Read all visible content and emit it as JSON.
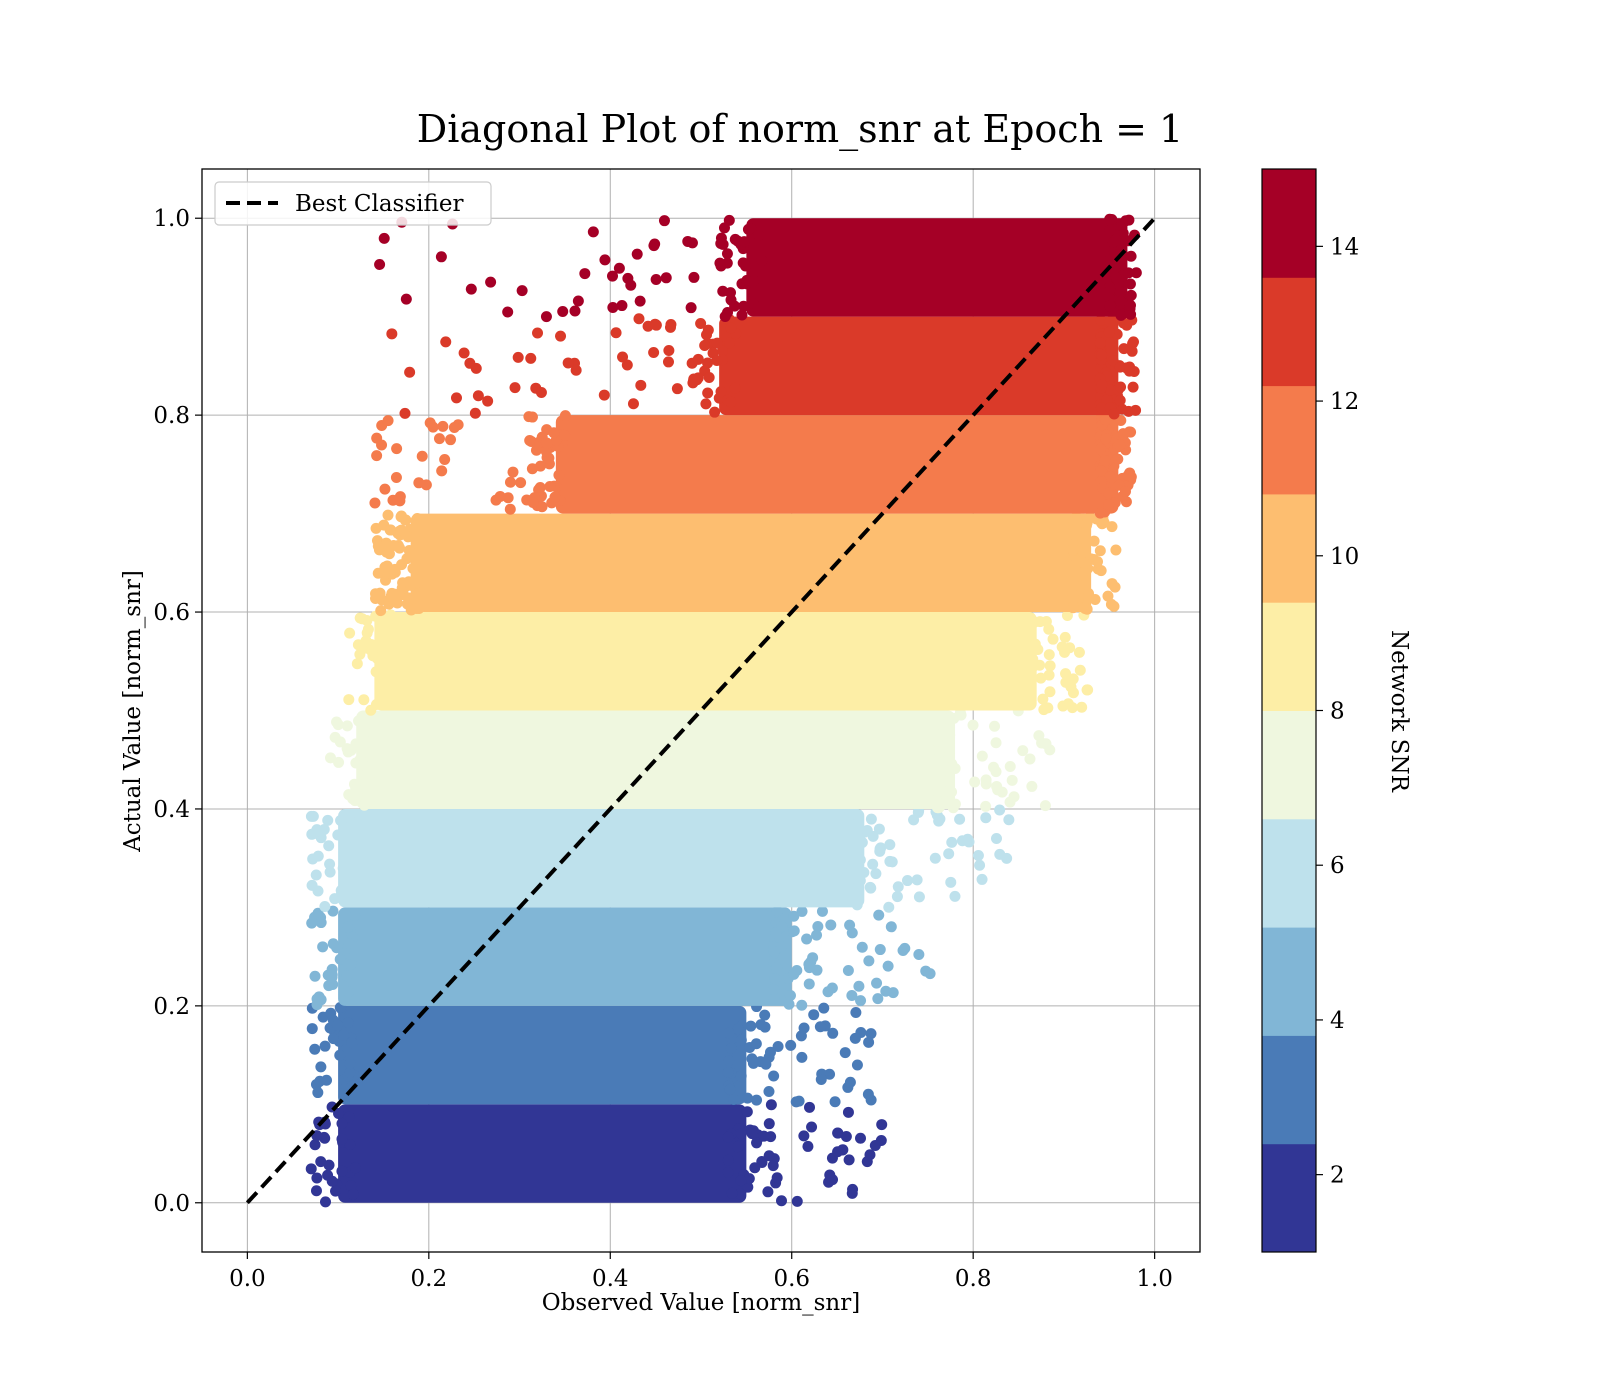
{
  "chart_data": {
    "type": "scatter",
    "title": "Diagonal Plot of norm_snr at Epoch = 1",
    "xlabel": "Observed Value [norm_snr]",
    "ylabel": "Actual Value [norm_snr]",
    "xlim": [
      -0.05,
      1.05
    ],
    "ylim": [
      -0.05,
      1.05
    ],
    "xticks": [
      0.0,
      0.2,
      0.4,
      0.6,
      0.8,
      1.0
    ],
    "xtick_labels": [
      "0.0",
      "0.2",
      "0.4",
      "0.6",
      "0.8",
      "1.0"
    ],
    "yticks": [
      0.0,
      0.2,
      0.4,
      0.6,
      0.8,
      1.0
    ],
    "ytick_labels": [
      "0.0",
      "0.2",
      "0.4",
      "0.6",
      "0.8",
      "1.0"
    ],
    "grid": true,
    "legend": {
      "placement": "upper-left",
      "entries": [
        {
          "label": "Best Classifier",
          "style": "dashed",
          "color": "#000000"
        }
      ]
    },
    "reference_line": {
      "name": "Best Classifier",
      "x": [
        0.0,
        1.0
      ],
      "y": [
        0.0,
        1.0
      ],
      "style": "dashed",
      "color": "#000000"
    },
    "bands": [
      {
        "snr_level": 2,
        "color": "#313695",
        "y_range": [
          0.0,
          0.1
        ],
        "dense_x_range": [
          0.1,
          0.55
        ],
        "spread_x_max": 0.7
      },
      {
        "snr_level": 3,
        "color": "#4a7bb7",
        "y_range": [
          0.1,
          0.2
        ],
        "dense_x_range": [
          0.1,
          0.55
        ],
        "spread_x_max": 0.69
      },
      {
        "snr_level": 4,
        "color": "#81b6d6",
        "y_range": [
          0.2,
          0.3
        ],
        "dense_x_range": [
          0.1,
          0.6
        ],
        "spread_x_max": 0.76
      },
      {
        "snr_level": 6,
        "color": "#bee1ec",
        "y_range": [
          0.3,
          0.4
        ],
        "dense_x_range": [
          0.1,
          0.68
        ],
        "spread_x_max": 0.84
      },
      {
        "snr_level": 7,
        "color": "#eff7df",
        "y_range": [
          0.4,
          0.5
        ],
        "dense_x_range": [
          0.12,
          0.78
        ],
        "spread_x_max": 0.9
      },
      {
        "snr_level": 8,
        "color": "#fdeea6",
        "y_range": [
          0.5,
          0.6
        ],
        "dense_x_range": [
          0.14,
          0.87
        ],
        "spread_x_max": 0.93
      },
      {
        "snr_level": 10,
        "color": "#fdbe70",
        "y_range": [
          0.6,
          0.7
        ],
        "dense_x_range": [
          0.18,
          0.93
        ],
        "spread_x_max": 0.96
      },
      {
        "snr_level": 11,
        "color": "#f47b4c",
        "y_range": [
          0.7,
          0.8
        ],
        "dense_x_range": [
          0.34,
          0.96
        ],
        "spread_x_max": 0.98
      },
      {
        "snr_level": 13,
        "color": "#da3a29",
        "y_range": [
          0.8,
          0.9
        ],
        "dense_x_range": [
          0.52,
          0.96
        ],
        "spread_x_max": 0.98
      },
      {
        "snr_level": 14,
        "color": "#a50026",
        "y_range": [
          0.9,
          1.0
        ],
        "dense_x_range": [
          0.55,
          0.97
        ],
        "spread_x_max": 0.98
      }
    ],
    "colorbar": {
      "label": "Network SNR",
      "range": [
        1,
        15
      ],
      "ticks": [
        2,
        4,
        6,
        8,
        10,
        12,
        14
      ],
      "tick_labels": [
        "2",
        "4",
        "6",
        "8",
        "10",
        "12",
        "14"
      ],
      "colors": [
        "#313695",
        "#4a7bb7",
        "#81b6d6",
        "#bee1ec",
        "#eff7df",
        "#fdeea6",
        "#fdbe70",
        "#f47b4c",
        "#da3a29",
        "#a50026"
      ]
    }
  }
}
